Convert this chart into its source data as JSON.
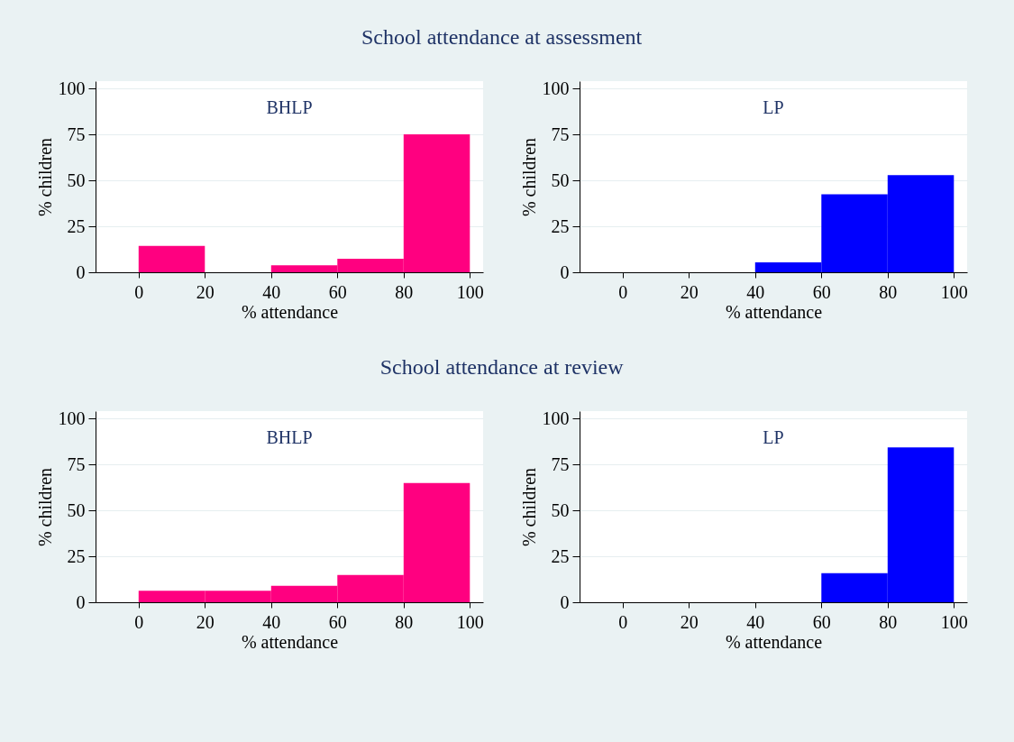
{
  "chart_data": [
    {
      "type": "histogram",
      "title": "School attendance at assessment",
      "annotations": [
        "BHLP"
      ],
      "xlabel": "% attendance",
      "ylabel": "% children",
      "bins": [
        0,
        20,
        40,
        60,
        80,
        100
      ],
      "values": [
        14.4,
        0,
        3.8,
        7.3,
        75
      ],
      "color": "#ff0080",
      "xlim": [
        -13,
        104
      ],
      "ylim": [
        0,
        104
      ],
      "xticks": [
        0,
        20,
        40,
        60,
        80,
        100
      ],
      "yticks": [
        0,
        25,
        50,
        75,
        100
      ],
      "grid": "y"
    },
    {
      "type": "histogram",
      "annotations": [
        "LP"
      ],
      "xlabel": "% attendance",
      "ylabel": "% children",
      "bins": [
        0,
        20,
        40,
        60,
        80,
        100
      ],
      "values": [
        0,
        0,
        5.4,
        42.4,
        52.8
      ],
      "color": "#0000ff",
      "xlim": [
        -13,
        104
      ],
      "ylim": [
        0,
        104
      ],
      "xticks": [
        0,
        20,
        40,
        60,
        80,
        100
      ],
      "yticks": [
        0,
        25,
        50,
        75,
        100
      ],
      "grid": "y"
    },
    {
      "type": "histogram",
      "title": "School attendance at review",
      "annotations": [
        "BHLP"
      ],
      "xlabel": "% attendance",
      "ylabel": "% children",
      "bins": [
        0,
        20,
        40,
        60,
        80,
        100
      ],
      "values": [
        6.2,
        6.2,
        9.0,
        14.9,
        64.9
      ],
      "color": "#ff0080",
      "xlim": [
        -13,
        104
      ],
      "ylim": [
        0,
        104
      ],
      "xticks": [
        0,
        20,
        40,
        60,
        80,
        100
      ],
      "yticks": [
        0,
        25,
        50,
        75,
        100
      ],
      "grid": "y"
    },
    {
      "type": "histogram",
      "annotations": [
        "LP"
      ],
      "xlabel": "% attendance",
      "ylabel": "% children",
      "bins": [
        0,
        20,
        40,
        60,
        80,
        100
      ],
      "values": [
        0,
        0,
        0,
        15.8,
        84.3
      ],
      "color": "#0000ff",
      "xlim": [
        -13,
        104
      ],
      "ylim": [
        0,
        104
      ],
      "xticks": [
        0,
        20,
        40,
        60,
        80,
        100
      ],
      "yticks": [
        0,
        25,
        50,
        75,
        100
      ],
      "grid": "y"
    }
  ]
}
